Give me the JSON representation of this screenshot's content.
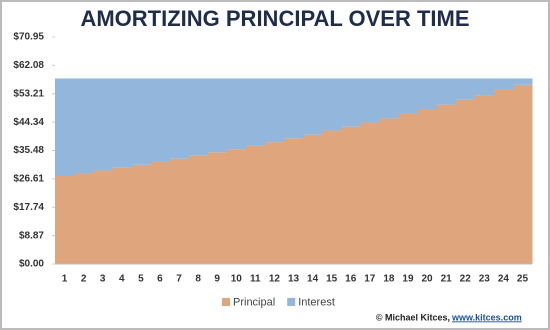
{
  "chart_data": {
    "type": "stacked-area-step",
    "title": "AMORTIZING PRINCIPAL OVER TIME",
    "categories": [
      "1",
      "2",
      "3",
      "4",
      "5",
      "6",
      "7",
      "8",
      "9",
      "10",
      "11",
      "12",
      "13",
      "14",
      "15",
      "16",
      "17",
      "18",
      "19",
      "20",
      "21",
      "22",
      "23",
      "24",
      "25"
    ],
    "series": [
      {
        "name": "Principal",
        "color": "#dfa57c",
        "values": [
          27.5,
          28.3,
          29.2,
          30.1,
          31.0,
          31.9,
          32.9,
          33.8,
          34.9,
          35.9,
          37.0,
          38.1,
          39.3,
          40.4,
          41.7,
          42.9,
          44.2,
          45.5,
          46.9,
          48.3,
          49.8,
          51.3,
          52.8,
          54.4,
          56.0
        ]
      },
      {
        "name": "Interest",
        "color": "#93b7dc",
        "values": [
          30.5,
          29.7,
          28.8,
          27.9,
          27.0,
          26.1,
          25.1,
          24.2,
          23.1,
          22.1,
          21.0,
          19.9,
          18.7,
          17.6,
          16.3,
          15.1,
          13.8,
          12.5,
          11.1,
          9.7,
          8.2,
          6.7,
          5.2,
          3.6,
          2.0
        ]
      }
    ],
    "ylim": [
      0,
      70.95
    ],
    "yticks": [
      {
        "value": 0,
        "label": "$0.00"
      },
      {
        "value": 8.87,
        "label": "$8.87"
      },
      {
        "value": 17.74,
        "label": "$17.74"
      },
      {
        "value": 26.61,
        "label": "$26.61"
      },
      {
        "value": 35.48,
        "label": "$35.48"
      },
      {
        "value": 44.34,
        "label": "$44.34"
      },
      {
        "value": 53.21,
        "label": "$53.21"
      },
      {
        "value": 62.08,
        "label": "$62.08"
      },
      {
        "value": 70.95,
        "label": "$70.95"
      }
    ],
    "legend": "bottom",
    "credit": "© Michael Kitces,",
    "credit_link": "www.kitces.com"
  }
}
